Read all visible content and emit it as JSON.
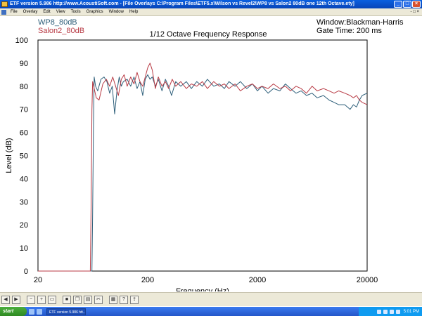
{
  "window": {
    "title": "ETF version 5.986 http://www.AcoustiSoft.com - [File Overlays C:\\Program Files\\ETF5.x\\Wilson vs Revel2\\WP8 vs Salon2 80dB one 12th Octave.ety]",
    "icons": [
      "app-icon",
      "minimize-icon",
      "maximize-icon",
      "close-icon"
    ]
  },
  "menu": {
    "items": [
      "File",
      "Overlay",
      "Edit",
      "View",
      "Tools",
      "Graphics",
      "Window",
      "Help"
    ],
    "right_controls": "- □ ×"
  },
  "chart_data": {
    "type": "line",
    "title": "1/12 Octave Frequency Response",
    "xlabel": "Frequency (Hz)",
    "ylabel": "Level (dB)",
    "xscale": "log",
    "xlim": [
      20,
      20000
    ],
    "ylim": [
      0,
      100
    ],
    "x_ticks": [
      "20",
      "200",
      "2000",
      "20000"
    ],
    "y_ticks": [
      "0",
      "10",
      "20",
      "30",
      "40",
      "50",
      "60",
      "70",
      "80",
      "90",
      "100"
    ],
    "grid": true,
    "info_lines": [
      "Window:Blackman-Harris",
      "Gate Time: 200 ms"
    ],
    "series": [
      {
        "name": "WP8_80dB",
        "color": "#2e5f7a",
        "points": [
          [
            20,
            0
          ],
          [
            50,
            0
          ],
          [
            62,
            0
          ],
          [
            63,
            25
          ],
          [
            64,
            60
          ],
          [
            65,
            84
          ],
          [
            67,
            80
          ],
          [
            70,
            78
          ],
          [
            75,
            83
          ],
          [
            80,
            84
          ],
          [
            85,
            82
          ],
          [
            90,
            77
          ],
          [
            95,
            80
          ],
          [
            100,
            68
          ],
          [
            105,
            78
          ],
          [
            110,
            84
          ],
          [
            115,
            80
          ],
          [
            120,
            82
          ],
          [
            130,
            83
          ],
          [
            140,
            80
          ],
          [
            150,
            84
          ],
          [
            160,
            79
          ],
          [
            170,
            82
          ],
          [
            180,
            76
          ],
          [
            190,
            83
          ],
          [
            200,
            85
          ],
          [
            210,
            83
          ],
          [
            220,
            84
          ],
          [
            235,
            80
          ],
          [
            250,
            83
          ],
          [
            270,
            78
          ],
          [
            290,
            83
          ],
          [
            310,
            80
          ],
          [
            330,
            76
          ],
          [
            360,
            82
          ],
          [
            400,
            80
          ],
          [
            450,
            82
          ],
          [
            500,
            79
          ],
          [
            560,
            82
          ],
          [
            630,
            80
          ],
          [
            700,
            83
          ],
          [
            800,
            80
          ],
          [
            900,
            81
          ],
          [
            1000,
            79
          ],
          [
            1100,
            82
          ],
          [
            1250,
            80
          ],
          [
            1400,
            82
          ],
          [
            1600,
            79
          ],
          [
            1800,
            81
          ],
          [
            2000,
            78
          ],
          [
            2200,
            80
          ],
          [
            2500,
            77
          ],
          [
            2800,
            79
          ],
          [
            3200,
            78
          ],
          [
            3600,
            81
          ],
          [
            4000,
            79
          ],
          [
            4500,
            77
          ],
          [
            5000,
            78
          ],
          [
            5600,
            76
          ],
          [
            6300,
            77
          ],
          [
            7000,
            75
          ],
          [
            8000,
            76
          ],
          [
            9000,
            74
          ],
          [
            10000,
            73
          ],
          [
            11000,
            72
          ],
          [
            12500,
            72
          ],
          [
            14000,
            70
          ],
          [
            15000,
            72
          ],
          [
            16000,
            71
          ],
          [
            17000,
            74
          ],
          [
            18000,
            76
          ],
          [
            20000,
            77
          ]
        ]
      },
      {
        "name": "Salon2_80dB",
        "color": "#b83a44",
        "points": [
          [
            20,
            0
          ],
          [
            55,
            0
          ],
          [
            60,
            0
          ],
          [
            61,
            30
          ],
          [
            62,
            70
          ],
          [
            63,
            82
          ],
          [
            65,
            79
          ],
          [
            68,
            75
          ],
          [
            72,
            74
          ],
          [
            78,
            81
          ],
          [
            84,
            83
          ],
          [
            90,
            80
          ],
          [
            96,
            84
          ],
          [
            102,
            80
          ],
          [
            108,
            76
          ],
          [
            115,
            83
          ],
          [
            122,
            85
          ],
          [
            130,
            80
          ],
          [
            140,
            84
          ],
          [
            150,
            81
          ],
          [
            160,
            86
          ],
          [
            170,
            82
          ],
          [
            180,
            80
          ],
          [
            190,
            84
          ],
          [
            200,
            88
          ],
          [
            210,
            90
          ],
          [
            220,
            87
          ],
          [
            235,
            79
          ],
          [
            250,
            84
          ],
          [
            270,
            80
          ],
          [
            290,
            82
          ],
          [
            310,
            79
          ],
          [
            335,
            83
          ],
          [
            360,
            80
          ],
          [
            400,
            82
          ],
          [
            450,
            79
          ],
          [
            500,
            81
          ],
          [
            560,
            80
          ],
          [
            630,
            82
          ],
          [
            700,
            79
          ],
          [
            800,
            82
          ],
          [
            900,
            80
          ],
          [
            1000,
            81
          ],
          [
            1100,
            79
          ],
          [
            1250,
            81
          ],
          [
            1400,
            78
          ],
          [
            1600,
            80
          ],
          [
            1800,
            81
          ],
          [
            2000,
            79
          ],
          [
            2200,
            80
          ],
          [
            2500,
            79
          ],
          [
            2800,
            81
          ],
          [
            3200,
            79
          ],
          [
            3600,
            80
          ],
          [
            4000,
            78
          ],
          [
            4500,
            80
          ],
          [
            5000,
            79
          ],
          [
            5600,
            77
          ],
          [
            6300,
            80
          ],
          [
            7000,
            78
          ],
          [
            8000,
            79
          ],
          [
            9000,
            78
          ],
          [
            10000,
            77
          ],
          [
            11000,
            78
          ],
          [
            12500,
            77
          ],
          [
            14000,
            76
          ],
          [
            15000,
            75
          ],
          [
            16000,
            76
          ],
          [
            17000,
            74
          ],
          [
            18000,
            73
          ],
          [
            20000,
            72
          ]
        ]
      }
    ]
  },
  "toolbar": {
    "buttons": [
      "arrow-left",
      "arrow-right",
      "zoom-out",
      "zoom-in",
      "open-file",
      "save",
      "copy",
      "print",
      "cut",
      "properties",
      "help",
      "export"
    ]
  },
  "taskbar": {
    "start_label": "start",
    "task_label": "ETF version 5.986 htt...",
    "clock": "5:01 PM"
  }
}
